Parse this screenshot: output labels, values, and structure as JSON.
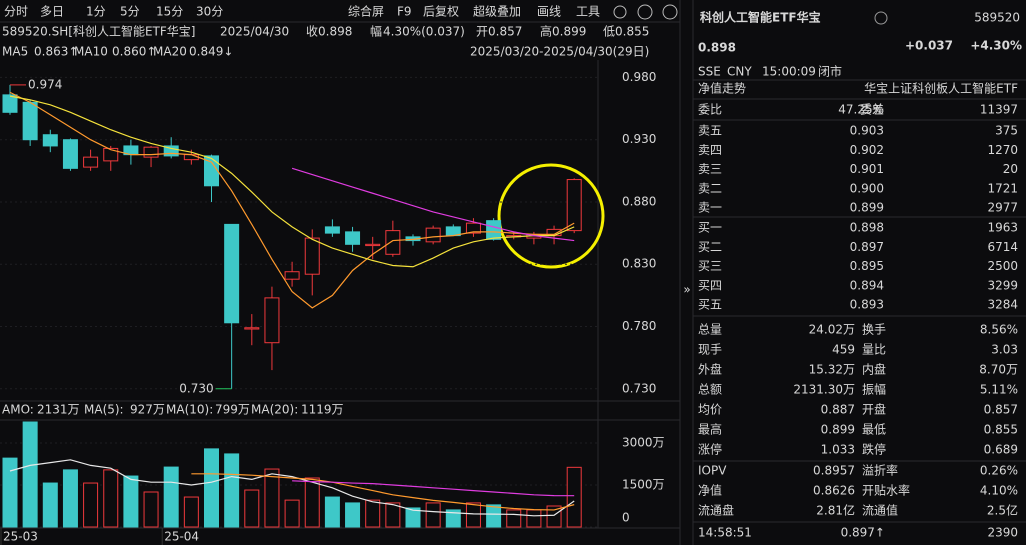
{
  "toolbar": {
    "left": [
      "分时",
      "多日",
      "1分",
      "5分",
      "15分",
      "30分"
    ],
    "right": [
      "综合屏",
      "F9",
      "后复权",
      "超级叠加",
      "画线",
      "工具"
    ]
  },
  "info": {
    "code": "589520.SH[科创人工智能ETF华宝]",
    "date": "2025/04/30",
    "close_label": "收",
    "close": "0.898",
    "change_label": "幅",
    "change": "4.30%(0.037)",
    "open_label": "开",
    "open": "0.857",
    "high_label": "高",
    "high": "0.899",
    "low_label": "低",
    "low": "0.855",
    "range": "2025/03/20-2025/04/30(29日)"
  },
  "chart_data": [
    {
      "type": "candlestick",
      "categories": [
        "25-03",
        null,
        null,
        null,
        null,
        null,
        null,
        null,
        "25-04",
        null,
        null,
        null,
        null,
        null,
        null,
        null,
        null,
        null,
        null,
        null,
        null,
        null,
        null,
        null,
        null,
        null,
        null,
        null,
        null
      ],
      "open": [
        0.966,
        0.96,
        0.934,
        0.93,
        0.908,
        0.913,
        0.925,
        0.916,
        0.925,
        0.914,
        0.917,
        0.862,
        0.778,
        0.767,
        0.818,
        0.822,
        0.86,
        0.856,
        0.845,
        0.838,
        0.852,
        0.848,
        0.86,
        0.855,
        0.865,
        0.852,
        0.851,
        0.853,
        0.857
      ],
      "high": [
        0.974,
        0.962,
        0.938,
        0.931,
        0.922,
        0.925,
        0.93,
        0.925,
        0.932,
        0.922,
        0.918,
        0.862,
        0.79,
        0.812,
        0.832,
        0.858,
        0.866,
        0.86,
        0.852,
        0.865,
        0.854,
        0.861,
        0.862,
        0.867,
        0.867,
        0.856,
        0.856,
        0.861,
        0.899
      ],
      "low": [
        0.95,
        0.925,
        0.92,
        0.905,
        0.905,
        0.905,
        0.91,
        0.908,
        0.915,
        0.91,
        0.88,
        0.73,
        0.765,
        0.745,
        0.812,
        0.805,
        0.852,
        0.84,
        0.834,
        0.836,
        0.845,
        0.846,
        0.853,
        0.852,
        0.849,
        0.85,
        0.846,
        0.846,
        0.855
      ],
      "close": [
        0.952,
        0.93,
        0.925,
        0.907,
        0.916,
        0.923,
        0.918,
        0.924,
        0.917,
        0.918,
        0.893,
        0.783,
        0.779,
        0.803,
        0.824,
        0.851,
        0.855,
        0.846,
        0.846,
        0.857,
        0.849,
        0.859,
        0.853,
        0.863,
        0.85,
        0.853,
        0.854,
        0.858,
        0.898
      ],
      "up_color": "#f0393c",
      "down_color": "#3ec8c8",
      "series": [
        {
          "name": "MA5",
          "last_label": "0.863↑",
          "color": "#ff9a2e",
          "values": [
            0.968,
            0.96,
            0.95,
            0.94,
            0.93,
            0.922,
            0.918,
            0.918,
            0.919,
            0.918,
            0.912,
            0.889,
            0.862,
            0.834,
            0.808,
            0.795,
            0.805,
            0.825,
            0.838,
            0.849,
            0.85,
            0.852,
            0.853,
            0.856,
            0.856,
            0.855,
            0.854,
            0.854,
            0.863
          ]
        },
        {
          "name": "MA10",
          "last_label": "0.860↑",
          "color": "#f5e23c",
          "values": [
            0.965,
            0.962,
            0.958,
            0.952,
            0.945,
            0.938,
            0.932,
            0.927,
            0.923,
            0.92,
            0.915,
            0.903,
            0.888,
            0.872,
            0.86,
            0.85,
            0.843,
            0.838,
            0.833,
            0.829,
            0.828,
            0.835,
            0.843,
            0.848,
            0.851,
            0.852,
            0.853,
            0.853,
            0.86
          ]
        },
        {
          "name": "MA20",
          "last_label": "0.849↓",
          "color": "#e03ce0",
          "values": [
            null,
            null,
            null,
            null,
            null,
            null,
            null,
            null,
            null,
            null,
            null,
            null,
            null,
            null,
            0.907,
            0.902,
            0.897,
            0.892,
            0.887,
            0.882,
            0.877,
            0.872,
            0.868,
            0.864,
            0.86,
            0.856,
            0.853,
            0.851,
            0.849
          ]
        }
      ],
      "annotations": [
        {
          "label": "0.974",
          "value": 0.974
        },
        {
          "label": "0.730",
          "value": 0.73
        }
      ],
      "ylim": [
        0.721,
        0.994
      ],
      "yticks": [
        {
          "value": 0.98,
          "label": "0.980"
        },
        {
          "value": 0.93,
          "label": "0.930"
        },
        {
          "value": 0.88,
          "label": "0.880"
        },
        {
          "value": 0.83,
          "label": "0.830"
        },
        {
          "value": 0.78,
          "label": "0.780"
        },
        {
          "value": 0.73,
          "label": "0.730"
        }
      ],
      "grid": true
    },
    {
      "type": "bar",
      "title": "AMO:",
      "title_value": "2131万",
      "values": [
        2460,
        3750,
        1570,
        2040,
        1570,
        2040,
        1820,
        1250,
        2140,
        1070,
        2790,
        2610,
        1320,
        2070,
        960,
        1750,
        1070,
        860,
        960,
        860,
        680,
        860,
        610,
        860,
        790,
        610,
        610,
        750,
        2131
      ],
      "series": [
        {
          "name": "MA(5):",
          "last_label": "927万",
          "color": "#e8e8e8",
          "values": [
            2000,
            2200,
            2300,
            2400,
            2200,
            2100,
            1700,
            1600,
            1600,
            1500,
            1600,
            1800,
            1700,
            1900,
            1800,
            1600,
            1400,
            1100,
            900,
            800,
            600,
            550,
            510,
            470,
            460,
            450,
            400,
            420,
            927
          ]
        },
        {
          "name": "MA(10):",
          "last_label": "799万",
          "color": "#ff9a2e",
          "values": [
            null,
            null,
            null,
            null,
            null,
            null,
            null,
            null,
            null,
            1900,
            1900,
            1880,
            1850,
            1800,
            1750,
            1700,
            1600,
            1450,
            1300,
            1150,
            1050,
            950,
            880,
            800,
            720,
            660,
            620,
            610,
            799
          ]
        },
        {
          "name": "MA(20):",
          "last_label": "1119万",
          "color": "#e03ce0",
          "values": [
            null,
            null,
            null,
            null,
            null,
            null,
            null,
            null,
            null,
            null,
            null,
            null,
            null,
            null,
            1650,
            1620,
            1600,
            1570,
            1550,
            1500,
            1450,
            1400,
            1350,
            1300,
            1250,
            1200,
            1150,
            1120,
            1119
          ]
        }
      ],
      "ylim": [
        0,
        3750
      ],
      "yticks": [
        {
          "value": 3000,
          "label": "3000万"
        },
        {
          "value": 1500,
          "label": "1500万"
        },
        0
      ]
    }
  ],
  "quote": {
    "name": "科创人工智能ETF华宝",
    "code": "589520",
    "price": "0.898",
    "change": "+0.037",
    "change_pct": "+4.30%",
    "meta": [
      "SSE",
      "CNY",
      "15:00:09",
      "闭市"
    ],
    "nav_trend": "净值走势",
    "full_name": "华宝上证科创板人工智能ETF"
  },
  "order_book": {
    "ratio_label": "委比",
    "ratio": "47.25%",
    "diff_label": "委差",
    "diff": "11397",
    "asks": [
      [
        "卖五",
        "0.903",
        "375"
      ],
      [
        "卖四",
        "0.902",
        "1270"
      ],
      [
        "卖三",
        "0.901",
        "20"
      ],
      [
        "卖二",
        "0.900",
        "1721"
      ],
      [
        "卖一",
        "0.899",
        "2977"
      ]
    ],
    "bids": [
      [
        "买一",
        "0.898",
        "1963"
      ],
      [
        "买二",
        "0.897",
        "6714"
      ],
      [
        "买三",
        "0.895",
        "2500"
      ],
      [
        "买四",
        "0.894",
        "3299"
      ],
      [
        "买五",
        "0.893",
        "3284"
      ]
    ]
  },
  "stats": [
    [
      "总量",
      "24.02万",
      "换手",
      "8.56%"
    ],
    [
      "现手",
      "459",
      "量比",
      "3.03"
    ],
    [
      "外盘",
      "15.32万",
      "内盘",
      "8.70万"
    ],
    [
      "总额",
      "2131.30万",
      "振幅",
      "5.11%"
    ],
    [
      "均价",
      "0.887",
      "开盘",
      "0.857"
    ],
    [
      "最高",
      "0.899",
      "最低",
      "0.855"
    ],
    [
      "涨停",
      "1.033",
      "跌停",
      "0.689"
    ],
    [
      "IOPV",
      "0.8957",
      "溢折率",
      "0.26%"
    ],
    [
      "净值",
      "0.8626",
      "开贴水率",
      "4.10%"
    ],
    [
      "流通盘",
      "2.81亿",
      "流通值",
      "2.5亿"
    ]
  ],
  "last_tick": {
    "time": "14:58:51",
    "price": "0.897↑",
    "volume": "2390"
  }
}
